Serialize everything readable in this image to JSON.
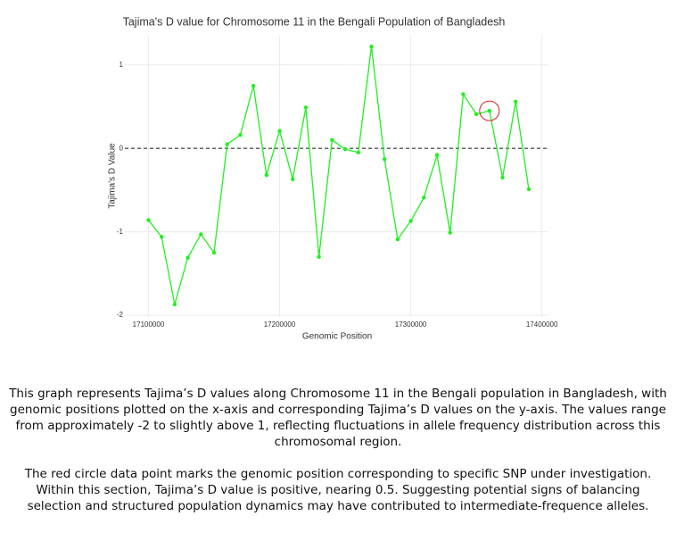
{
  "chart_data": {
    "type": "line",
    "title": "Tajima's D value for Chromosome 11 in the Bengali Population of Bangladesh",
    "x_label": "Genomic Position",
    "y_label": "Tajima's D Value",
    "x": [
      17100000,
      17110000,
      17120000,
      17130000,
      17140000,
      17150000,
      17160000,
      17170000,
      17180000,
      17190000,
      17200000,
      17210000,
      17220000,
      17230000,
      17240000,
      17250000,
      17260000,
      17270000,
      17280000,
      17290000,
      17300000,
      17310000,
      17320000,
      17330000,
      17340000,
      17350000,
      17360000,
      17370000,
      17380000,
      17390000
    ],
    "series": [
      {
        "name": "Tajima's D",
        "color": "#22ee22",
        "values": [
          -0.86,
          -1.06,
          -1.87,
          -1.31,
          -1.03,
          -1.25,
          0.05,
          0.16,
          0.75,
          -0.32,
          0.21,
          -0.37,
          0.49,
          -1.3,
          0.1,
          -0.01,
          -0.05,
          1.22,
          -0.13,
          -1.09,
          -0.87,
          -0.59,
          -0.08,
          -1.01,
          0.65,
          0.41,
          0.45,
          -0.35,
          0.56,
          -0.49
        ]
      }
    ],
    "xlim": [
      17082000,
      17405000
    ],
    "ylim": [
      -2.02,
      1.35
    ],
    "xticks": [
      17100000,
      17200000,
      17300000,
      17400000
    ],
    "yticks": [
      -2,
      -1,
      0,
      1
    ],
    "reference_line": 0,
    "highlight": {
      "index": 26,
      "color": "#e02020"
    },
    "grid": true
  },
  "caption": [
    "This graph represents Tajima’s D values along Chromosome 11 in the Bengali population in Bangladesh, with genomic positions plotted on the x-axis and corresponding Tajima’s D values on the y-axis. The values range from approximately -2 to slightly above 1, reflecting fluctuations in allele frequency distribution across this chromosomal region.",
    "The red circle data point marks the genomic position corresponding to specific SNP under investigation. Within this section, Tajima’s D value is positive, nearing 0.5. Suggesting potential signs of balancing selection and structured population dynamics may have contributed to intermediate-frequence alleles."
  ]
}
